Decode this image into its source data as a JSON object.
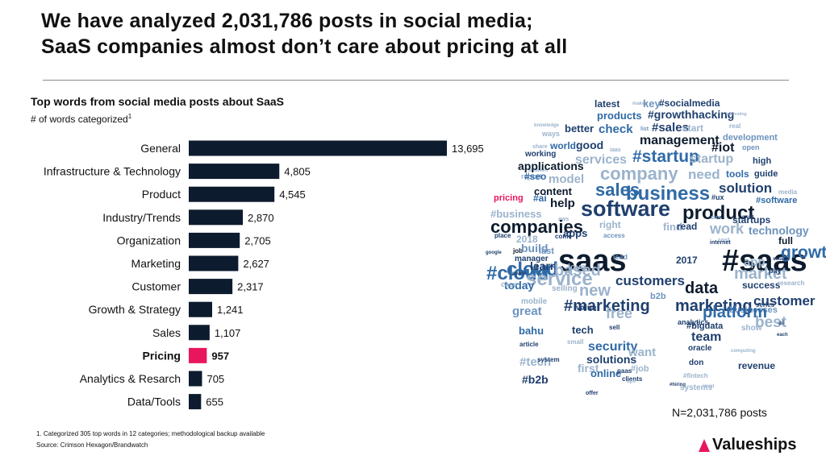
{
  "title": {
    "line1": "We have analyzed 2,031,786 posts in social media;",
    "line2": "SaaS companies almost don’t care about pricing at all"
  },
  "chart_title": "Top words from social media posts about SaaS",
  "unit_label": "# of words categorized",
  "unit_footnote_mark": "1",
  "colors": {
    "bar": "#0d1b2e",
    "highlight": "#e8175d"
  },
  "chart_data": {
    "type": "bar",
    "orientation": "horizontal",
    "categories": [
      "General",
      "Infrastructure & Technology",
      "Product",
      "Industry/Trends",
      "Organization",
      "Marketing",
      "Customer",
      "Growth & Strategy",
      "Sales",
      "Pricing",
      "Analytics & Resarch",
      "Data/Tools"
    ],
    "values": [
      13695,
      4805,
      4545,
      2870,
      2705,
      2627,
      2317,
      1241,
      1107,
      957,
      705,
      655
    ],
    "value_labels": [
      "13,695",
      "4,805",
      "4,545",
      "2,870",
      "2,705",
      "2,627",
      "2,317",
      "1,241",
      "1,107",
      "957",
      "705",
      "655"
    ],
    "highlight": "Pricing",
    "grid": false,
    "legend": "none"
  },
  "word_cloud": [
    {
      "t": "latest",
      "c": "#1f3f6e",
      "s": 12
    },
    {
      "t": "makes",
      "c": "#9bb3cc",
      "s": 6
    },
    {
      "t": "key",
      "c": "#6d93bd",
      "s": 13
    },
    {
      "t": "#socialmedia",
      "c": "#1f3f6e",
      "s": 12
    },
    {
      "t": "products",
      "c": "#2f6aa6",
      "s": 13
    },
    {
      "t": "#growthhacking",
      "c": "#1f3f6e",
      "s": 14
    },
    {
      "t": "interesting",
      "c": "#9bb3cc",
      "s": 5
    },
    {
      "t": "knowledge",
      "c": "#9bb3cc",
      "s": 6
    },
    {
      "t": "better",
      "c": "#1f3f6e",
      "s": 13
    },
    {
      "t": "check",
      "c": "#2f6aa6",
      "s": 15
    },
    {
      "t": "list",
      "c": "#6d93bd",
      "s": 7
    },
    {
      "t": "#sales",
      "c": "#1f3f6e",
      "s": 15
    },
    {
      "t": "start",
      "c": "#9bb3cc",
      "s": 12
    },
    {
      "t": "real",
      "c": "#9bb3cc",
      "s": 8
    },
    {
      "t": "ways",
      "c": "#9bb3cc",
      "s": 9
    },
    {
      "t": "management",
      "c": "#0d1b2e",
      "s": 16
    },
    {
      "t": "development",
      "c": "#6d93bd",
      "s": 11
    },
    {
      "t": "share",
      "c": "#9bb3cc",
      "s": 7
    },
    {
      "t": "world",
      "c": "#2f6aa6",
      "s": 12
    },
    {
      "t": "good",
      "c": "#1f3f6e",
      "s": 14
    },
    {
      "t": "iaas",
      "c": "#9bb3cc",
      "s": 7
    },
    {
      "t": "#iot",
      "c": "#0d1b2e",
      "s": 16
    },
    {
      "t": "open",
      "c": "#6d93bd",
      "s": 9
    },
    {
      "t": "working",
      "c": "#1f3f6e",
      "s": 10
    },
    {
      "t": "services",
      "c": "#9bb3cc",
      "s": 16
    },
    {
      "t": "#startup",
      "c": "#2f6aa6",
      "s": 21
    },
    {
      "t": "startup",
      "c": "#9bb3cc",
      "s": 16
    },
    {
      "t": "high",
      "c": "#1f3f6e",
      "s": 11
    },
    {
      "t": "between",
      "c": "#9bb3cc",
      "s": 6
    },
    {
      "t": "applications",
      "c": "#0d1b2e",
      "s": 14
    },
    {
      "t": "company",
      "c": "#9bb3cc",
      "s": 22
    },
    {
      "t": "need",
      "c": "#9bb3cc",
      "s": 17
    },
    {
      "t": "tools",
      "c": "#2f6aa6",
      "s": 12
    },
    {
      "t": "guide",
      "c": "#1f3f6e",
      "s": 11
    },
    {
      "t": "report",
      "c": "#9bb3cc",
      "s": 9
    },
    {
      "t": "#seo",
      "c": "#2f6aa6",
      "s": 12
    },
    {
      "t": "model",
      "c": "#9bb3cc",
      "s": 15
    },
    {
      "t": "sales",
      "c": "#2f6aa6",
      "s": 22
    },
    {
      "t": "solution",
      "c": "#1f3f6e",
      "s": 17
    },
    {
      "t": "content",
      "c": "#0d1b2e",
      "s": 13
    },
    {
      "t": "business",
      "c": "#2f6aa6",
      "s": 24
    },
    {
      "t": "#ux",
      "c": "#1f3f6e",
      "s": 9
    },
    {
      "t": "media",
      "c": "#9bb3cc",
      "s": 8
    },
    {
      "t": "pricing",
      "c": "#e8175d",
      "s": 11
    },
    {
      "t": "#ai",
      "c": "#2f6aa6",
      "s": 12
    },
    {
      "t": "help",
      "c": "#0d1b2e",
      "s": 15
    },
    {
      "t": "software",
      "c": "#1f3f6e",
      "s": 27
    },
    {
      "t": "product",
      "c": "#0d1b2e",
      "s": 24
    },
    {
      "t": "#software",
      "c": "#2f6aa6",
      "s": 11
    },
    {
      "t": "#business",
      "c": "#9bb3cc",
      "s": 13
    },
    {
      "t": "aws",
      "c": "#9bb3cc",
      "s": 7
    },
    {
      "t": "crm",
      "c": "#6d93bd",
      "s": 7
    },
    {
      "t": "must",
      "c": "#1f3f6e",
      "s": 6
    },
    {
      "t": "startups",
      "c": "#1f3f6e",
      "s": 12
    },
    {
      "t": "companies",
      "c": "#0d1b2e",
      "s": 22
    },
    {
      "t": "right",
      "c": "#9bb3cc",
      "s": 12
    },
    {
      "t": "find",
      "c": "#9bb3cc",
      "s": 13
    },
    {
      "t": "read",
      "c": "#1f3f6e",
      "s": 12
    },
    {
      "t": "work",
      "c": "#9bb3cc",
      "s": 18
    },
    {
      "t": "technology",
      "c": "#6d93bd",
      "s": 14
    },
    {
      "t": "place",
      "c": "#1f3f6e",
      "s": 8
    },
    {
      "t": "2018",
      "c": "#9bb3cc",
      "s": 12
    },
    {
      "t": "come",
      "c": "#1f3f6e",
      "s": 8
    },
    {
      "t": "access",
      "c": "#6d93bd",
      "s": 8
    },
    {
      "t": "cost",
      "c": "#9bb3cc",
      "s": 7
    },
    {
      "t": "full",
      "c": "#0d1b2e",
      "s": 12
    },
    {
      "t": "google",
      "c": "#1f3f6e",
      "s": 6
    },
    {
      "t": "job",
      "c": "#0d1b2e",
      "s": 8
    },
    {
      "t": "build",
      "c": "#6d93bd",
      "s": 14
    },
    {
      "t": "saas",
      "c": "#0d1b2e",
      "s": 38
    },
    {
      "t": "#saas",
      "c": "#0d1b2e",
      "s": 38
    },
    {
      "t": "growth",
      "c": "#2f6aa6",
      "s": 21
    },
    {
      "t": "apps",
      "c": "#1f3f6e",
      "s": 13
    },
    {
      "t": "manager",
      "c": "#1f3f6e",
      "s": 10
    },
    {
      "t": "last",
      "c": "#6d93bd",
      "s": 11
    },
    {
      "t": "internet",
      "c": "#1f3f6e",
      "s": 7
    },
    {
      "t": "app",
      "c": "#9bb3cc",
      "s": 15
    },
    {
      "t": "source",
      "c": "#1f3f6e",
      "s": 6
    },
    {
      "t": "cloud",
      "c": "#2f6aa6",
      "s": 24
    },
    {
      "t": "#cloud",
      "c": "#2f6aa6",
      "s": 24
    },
    {
      "t": "learn",
      "c": "#1f3f6e",
      "s": 14
    },
    {
      "t": "love",
      "c": "#9bb3cc",
      "s": 11
    },
    {
      "t": "lead",
      "c": "#6d93bd",
      "s": 9
    },
    {
      "t": "2017",
      "c": "#1f3f6e",
      "s": 12
    },
    {
      "t": "market",
      "c": "#9bb3cc",
      "s": 20
    },
    {
      "t": "pay",
      "c": "#1f3f6e",
      "s": 9
    },
    {
      "t": "space",
      "c": "#1f3f6e",
      "s": 6
    },
    {
      "t": "service",
      "c": "#9bb3cc",
      "s": 24
    },
    {
      "t": "based",
      "c": "#9bb3cc",
      "s": 20
    },
    {
      "t": "today",
      "c": "#2f6aa6",
      "s": 14
    },
    {
      "t": "selling",
      "c": "#9bb3cc",
      "s": 10
    },
    {
      "t": "customers",
      "c": "#1f3f6e",
      "s": 17
    },
    {
      "t": "data",
      "c": "#0d1b2e",
      "s": 20
    },
    {
      "t": "success",
      "c": "#1f3f6e",
      "s": 12
    },
    {
      "t": "research",
      "c": "#9bb3cc",
      "s": 8
    },
    {
      "t": "case",
      "c": "#9bb3cc",
      "s": 9
    },
    {
      "t": "new",
      "c": "#9bb3cc",
      "s": 20
    },
    {
      "t": "customer",
      "c": "#1f3f6e",
      "s": 17
    },
    {
      "t": "mobile",
      "c": "#9bb3cc",
      "s": 10
    },
    {
      "t": "#marketing",
      "c": "#1f3f6e",
      "s": 20
    },
    {
      "t": "b2b",
      "c": "#6d93bd",
      "s": 11
    },
    {
      "t": "marketing",
      "c": "#1f3f6e",
      "s": 20
    },
    {
      "t": "series",
      "c": "#1f3f6e",
      "s": 8
    },
    {
      "t": "great",
      "c": "#6d93bd",
      "s": 15
    },
    {
      "t": "value",
      "c": "#1f3f6e",
      "s": 10
    },
    {
      "t": "free",
      "c": "#9bb3cc",
      "s": 18
    },
    {
      "t": "analytics",
      "c": "#1f3f6e",
      "s": 9
    },
    {
      "t": "businesses",
      "c": "#6d93bd",
      "s": 11
    },
    {
      "t": "best",
      "c": "#9bb3cc",
      "s": 19
    },
    {
      "t": "platform",
      "c": "#2f6aa6",
      "s": 20
    },
    {
      "t": "ai",
      "c": "#1f3f6e",
      "s": 8
    },
    {
      "t": "bahu",
      "c": "#2f6aa6",
      "s": 13
    },
    {
      "t": "tech",
      "c": "#1f3f6e",
      "s": 13
    },
    {
      "t": "sell",
      "c": "#1f3f6e",
      "s": 8
    },
    {
      "t": "#bigdata",
      "c": "#1f3f6e",
      "s": 11
    },
    {
      "t": "team",
      "c": "#1f3f6e",
      "s": 16
    },
    {
      "t": "show",
      "c": "#9bb3cc",
      "s": 10
    },
    {
      "t": "each",
      "c": "#1f3f6e",
      "s": 6
    },
    {
      "t": "article",
      "c": "#1f3f6e",
      "s": 8
    },
    {
      "t": "small",
      "c": "#9bb3cc",
      "s": 8
    },
    {
      "t": "security",
      "c": "#2f6aa6",
      "s": 16
    },
    {
      "t": "#tech",
      "c": "#9bb3cc",
      "s": 15
    },
    {
      "t": "system",
      "c": "#1f3f6e",
      "s": 8
    },
    {
      "t": "solutions",
      "c": "#1f3f6e",
      "s": 14
    },
    {
      "t": "want",
      "c": "#9bb3cc",
      "s": 15
    },
    {
      "t": "oracle",
      "c": "#1f3f6e",
      "s": 10
    },
    {
      "t": "computing",
      "c": "#9bb3cc",
      "s": 6
    },
    {
      "t": "first",
      "c": "#9bb3cc",
      "s": 14
    },
    {
      "t": "don",
      "c": "#1f3f6e",
      "s": 10
    },
    {
      "t": "revenue",
      "c": "#1f3f6e",
      "s": 12
    },
    {
      "t": "#b2b",
      "c": "#1f3f6e",
      "s": 14
    },
    {
      "t": "online",
      "c": "#2f6aa6",
      "s": 13
    },
    {
      "t": "paas",
      "c": "#1f3f6e",
      "s": 8
    },
    {
      "t": "#job",
      "c": "#9bb3cc",
      "s": 11
    },
    {
      "t": "#fintech",
      "c": "#9bb3cc",
      "s": 8
    },
    {
      "t": "clients",
      "c": "#1f3f6e",
      "s": 8
    },
    {
      "t": "#hiring",
      "c": "#1f3f6e",
      "s": 6
    },
    {
      "t": "systems",
      "c": "#9bb3cc",
      "s": 10
    },
    {
      "t": "level",
      "c": "#9bb3cc",
      "s": 6
    },
    {
      "t": "tips",
      "c": "#9bb3cc",
      "s": 6
    },
    {
      "t": "offer",
      "c": "#1f3f6e",
      "s": 7
    }
  ],
  "n_label": "N=2,031,786  posts",
  "footnote": "1.    Categorized 305 top words in 12 categories; methodological backup available",
  "source": "Source: Crimson Hexagon/Brandwatch",
  "logo": {
    "text": "Valueships",
    "icon": "valueships-triangle-icon"
  }
}
